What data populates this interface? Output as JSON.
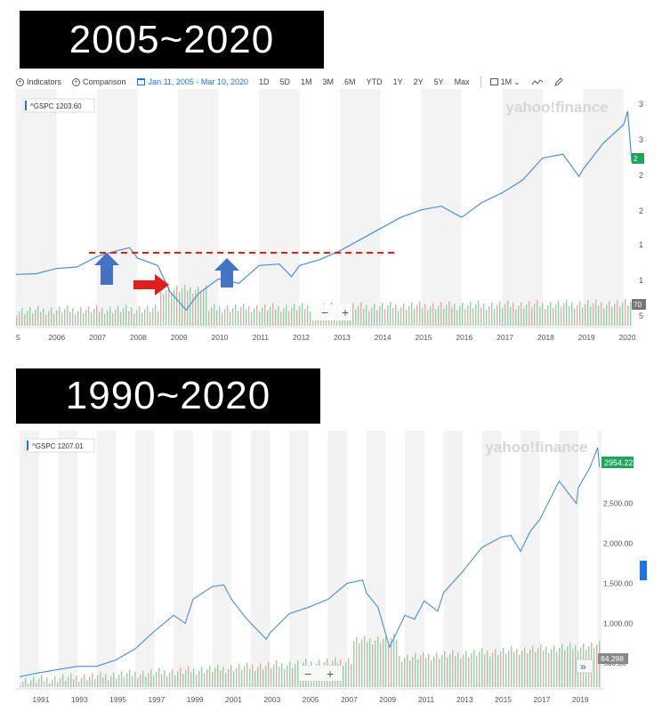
{
  "titles": {
    "top": "2005~2020",
    "bottom": "1990~2020"
  },
  "toolbar": {
    "indicators": "Indicators",
    "comparison": "Comparison",
    "date_range": "Jan 11, 2005 - Mar 10, 2020",
    "ranges": [
      "1D",
      "5D",
      "1M",
      "3M",
      "6M",
      "YTD",
      "1Y",
      "2Y",
      "5Y",
      "Max"
    ],
    "interval": "1M",
    "interval_caret": "⌄",
    "chart_type_icon": "line-chart-icon",
    "draw_icon": "pencil-icon"
  },
  "chart_top": {
    "watermark": "yahoo!finance",
    "legend": "^GSPC 1203.60",
    "right_axis_labels": [
      "3",
      "3",
      "2",
      "2",
      "1",
      "1",
      "1",
      "5"
    ],
    "price_badge": "2",
    "volume_badge": "70",
    "zoom_minus": "−",
    "zoom_plus": "+",
    "annotations": {
      "dashed_line_color": "#e11d1d",
      "up_arrow_color": "#4472c4",
      "right_arrow_color": "#e11d1d"
    }
  },
  "chart_bottom": {
    "watermark": "yahoo!finance",
    "legend": "^GSPC 1207.01",
    "price_badge": "2954.22",
    "volume_badge": "84.298",
    "zoom_minus": "−",
    "zoom_plus": "+",
    "forward_button": "»"
  },
  "colors": {
    "line": "#4a90d9",
    "badge": "#1ea55b",
    "vol_up": "#8fd3a8",
    "vol_down": "#f2a5a5",
    "band": "#f3f3f3"
  },
  "chart_data": [
    {
      "type": "line",
      "title": "2005~2020",
      "series": [
        {
          "name": "^GSPC",
          "x": [
            2005,
            2005.5,
            2006,
            2006.5,
            2007,
            2007.5,
            2007.8,
            2008,
            2008.5,
            2008.8,
            2009.2,
            2009.5,
            2010,
            2010.5,
            2011,
            2011.5,
            2011.8,
            2012,
            2012.5,
            2013,
            2013.5,
            2014,
            2014.5,
            2015,
            2015.5,
            2016,
            2016.5,
            2017,
            2017.5,
            2018,
            2018.5,
            2018.9,
            2019,
            2019.5,
            2020,
            2020.1,
            2020.2
          ],
          "values": [
            1180,
            1190,
            1260,
            1280,
            1420,
            1500,
            1540,
            1400,
            1300,
            950,
            700,
            920,
            1120,
            1060,
            1300,
            1320,
            1150,
            1300,
            1380,
            1500,
            1650,
            1800,
            1950,
            2050,
            2100,
            1950,
            2150,
            2280,
            2450,
            2750,
            2800,
            2500,
            2600,
            2950,
            3200,
            3380,
            2700
          ]
        }
      ],
      "x_tick_labels": [
        "05",
        "2006",
        "2007",
        "2008",
        "2009",
        "2010",
        "2011",
        "2012",
        "2013",
        "2014",
        "2015",
        "2016",
        "2017",
        "2018",
        "2019",
        "2020"
      ],
      "xlim": [
        2005,
        2020.2
      ],
      "ylim": [
        500,
        3500
      ]
    },
    {
      "type": "line",
      "title": "1990~2020",
      "series": [
        {
          "name": "^GSPC",
          "x": [
            1990,
            1991,
            1992,
            1993,
            1994,
            1995,
            1996,
            1997,
            1998,
            1998.6,
            1999,
            2000,
            2000.6,
            2001,
            2001.7,
            2002,
            2002.8,
            2003,
            2004,
            2005,
            2006,
            2007,
            2007.8,
            2008,
            2008.6,
            2009.2,
            2010,
            2010.5,
            2011,
            2011.7,
            2012,
            2013,
            2014,
            2015,
            2015.5,
            2016,
            2016.5,
            2017,
            2018,
            2018.9,
            2019,
            2019.6,
            2020,
            2020.1
          ],
          "values": [
            330,
            380,
            420,
            460,
            460,
            540,
            680,
            900,
            1100,
            1000,
            1300,
            1460,
            1480,
            1300,
            1080,
            1000,
            800,
            880,
            1120,
            1200,
            1300,
            1500,
            1540,
            1380,
            1200,
            700,
            1100,
            1050,
            1280,
            1150,
            1380,
            1650,
            1950,
            2080,
            2100,
            1900,
            2150,
            2300,
            2780,
            2500,
            2700,
            2950,
            3200,
            2954.22
          ]
        }
      ],
      "x_tick_labels": [
        "1991",
        "1993",
        "1995",
        "1997",
        "1999",
        "2001",
        "2003",
        "2005",
        "2007",
        "2009",
        "2011",
        "2013",
        "2015",
        "2017",
        "2019"
      ],
      "y_tick_labels": [
        "2,500.00",
        "2,000.00",
        "1,500.00",
        "1,000.00",
        "500.00"
      ],
      "xlim": [
        1990,
        2020.2
      ],
      "ylim": [
        200,
        3300
      ]
    }
  ]
}
